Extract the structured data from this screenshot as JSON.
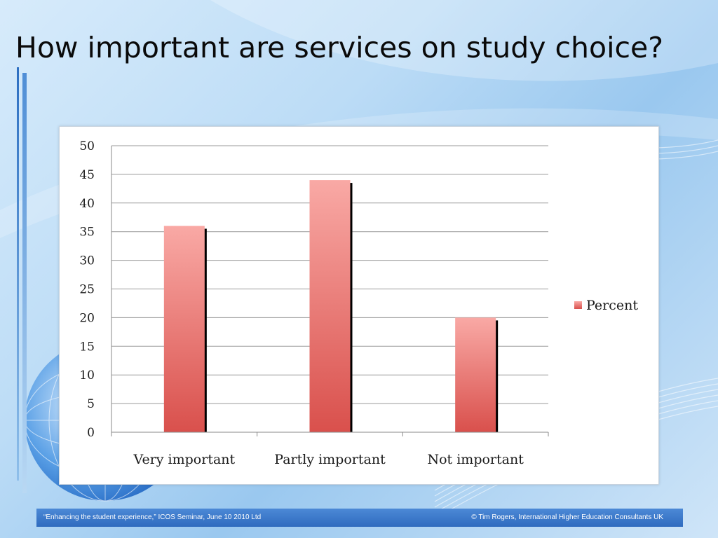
{
  "slide": {
    "title": "How important are services on study choice?"
  },
  "footer": {
    "left": "“Enhancing the student experience,” ICOS Seminar, June 10 2010 Ltd",
    "right": "© Tim Rogers, International Higher Education Consultants UK"
  },
  "colors": {
    "bar_top": "#f9a9a5",
    "bar_bottom": "#d9504c",
    "footer": "#3a78c9"
  },
  "chart_data": {
    "type": "bar",
    "title": "",
    "xlabel": "",
    "ylabel": "",
    "categories": [
      "Very important",
      "Partly important",
      "Not important"
    ],
    "series": [
      {
        "name": "Percent",
        "values": [
          36,
          44,
          20
        ]
      }
    ],
    "ylim": [
      0,
      50
    ],
    "yticks": [
      "0",
      "5",
      "10",
      "15",
      "20",
      "25",
      "30",
      "35",
      "40",
      "45",
      "50"
    ],
    "grid": true,
    "legend": "right"
  }
}
